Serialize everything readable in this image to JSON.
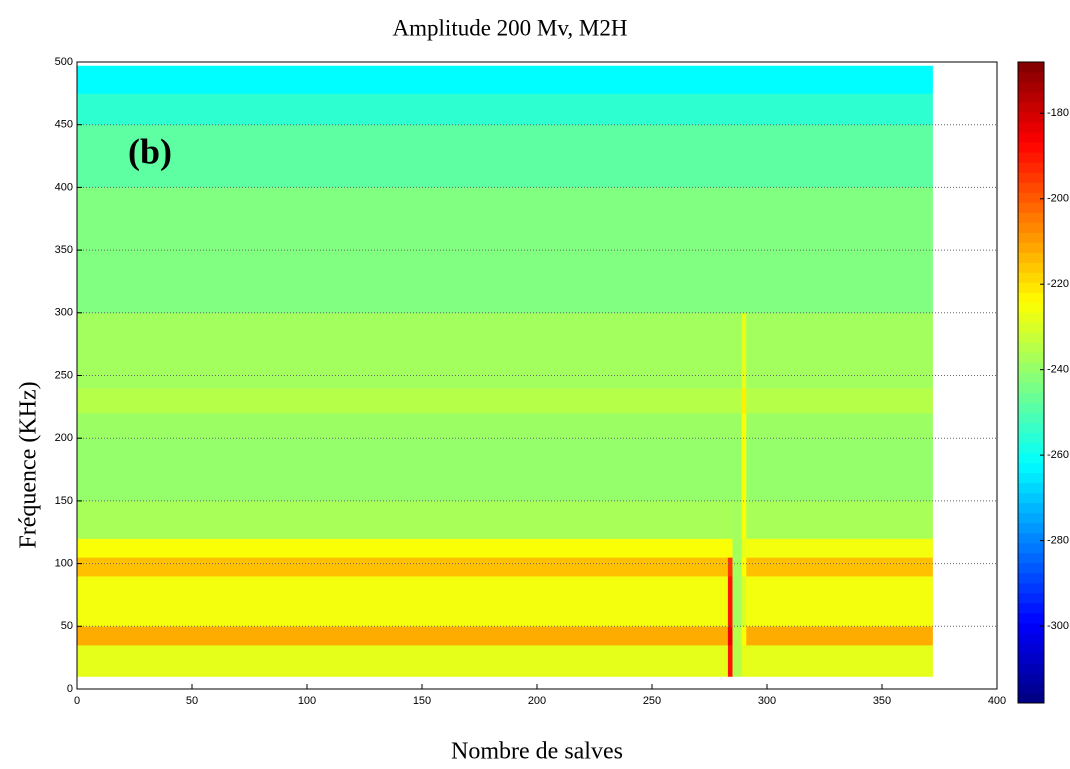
{
  "chart_data": {
    "type": "heatmap",
    "title": "Amplitude 200 Mv, M2H",
    "xlabel": "Nombre de salves",
    "ylabel": "Fréquence (KHz)",
    "annotation": "(b)",
    "x_edges": [
      0,
      283,
      285,
      289,
      291,
      372
    ],
    "y_edges": [
      10,
      35,
      50,
      90,
      105,
      120,
      150,
      200,
      220,
      240,
      300,
      400,
      450,
      475,
      497
    ],
    "values": [
      [
        -228,
        -190,
        -235,
        -228,
        -228
      ],
      [
        -212,
        -185,
        -235,
        -225,
        -212
      ],
      [
        -226,
        -190,
        -238,
        -230,
        -226
      ],
      [
        -215,
        -195,
        -238,
        -225,
        -215
      ],
      [
        -225,
        -225,
        -238,
        -228,
        -226
      ],
      [
        -237,
        -237,
        -238,
        -225,
        -237
      ],
      [
        -240,
        -240,
        -240,
        -225,
        -240
      ],
      [
        -239,
        -239,
        -239,
        -225,
        -239
      ],
      [
        -235,
        -235,
        -235,
        -222,
        -235
      ],
      [
        -238,
        -238,
        -238,
        -228,
        -238
      ],
      [
        -243,
        -243,
        -243,
        -243,
        -243
      ],
      [
        -248,
        -248,
        -248,
        -248,
        -248
      ],
      [
        -255,
        -255,
        -255,
        -255,
        -255
      ],
      [
        -262,
        -262,
        -262,
        -262,
        -262
      ]
    ],
    "colormap": "jet",
    "clim": [
      -318,
      -168
    ],
    "xlim": [
      0,
      400
    ],
    "xticks": [
      0,
      50,
      100,
      150,
      200,
      250,
      300,
      350,
      400
    ],
    "ylim": [
      0,
      500
    ],
    "yticks": [
      0,
      50,
      100,
      150,
      200,
      250,
      300,
      350,
      400,
      450,
      500
    ],
    "cticks": [
      -180,
      -200,
      -220,
      -240,
      -260,
      -280,
      -300
    ],
    "grid": true
  }
}
